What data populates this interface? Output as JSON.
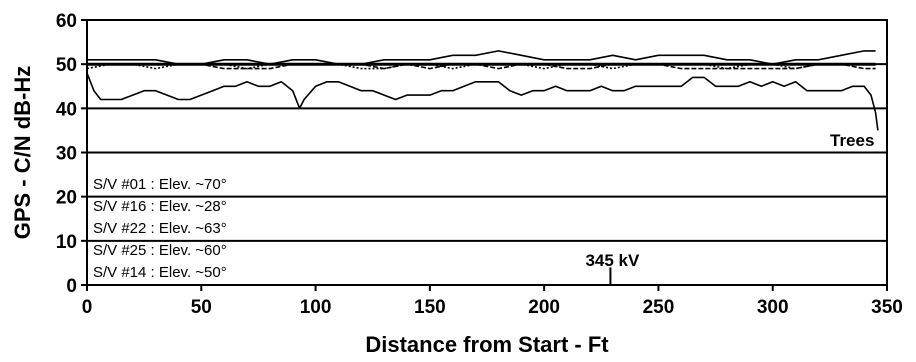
{
  "chart_data": {
    "type": "line",
    "xlabel": "Distance from Start - Ft",
    "ylabel": "GPS - C/N dB-Hz",
    "xlim": [
      0,
      350
    ],
    "ylim": [
      0,
      60
    ],
    "xticks": [
      0,
      50,
      100,
      150,
      200,
      250,
      300,
      350
    ],
    "yticks": [
      0,
      10,
      20,
      30,
      40,
      50,
      60
    ],
    "grid": "horizontal",
    "legend_placement": "bottom-left",
    "series": [
      {
        "name": "S/V #01 : Elev. ~70°",
        "x": [
          0,
          10,
          20,
          30,
          40,
          50,
          60,
          70,
          80,
          90,
          100,
          110,
          120,
          130,
          140,
          150,
          160,
          170,
          180,
          190,
          200,
          210,
          220,
          230,
          240,
          250,
          260,
          270,
          280,
          290,
          300,
          310,
          320,
          330,
          340,
          345
        ],
        "y": [
          51,
          51,
          51,
          51,
          50,
          50,
          51,
          51,
          50,
          51,
          51,
          50,
          50,
          51,
          51,
          51,
          52,
          52,
          53,
          52,
          51,
          51,
          51,
          52,
          51,
          52,
          52,
          52,
          51,
          51,
          50,
          51,
          51,
          52,
          53,
          53
        ]
      },
      {
        "name": "S/V #16 : Elev. ~28°",
        "x": [
          0,
          3,
          6,
          10,
          15,
          20,
          25,
          30,
          35,
          40,
          45,
          50,
          55,
          60,
          65,
          70,
          75,
          80,
          85,
          90,
          93,
          95,
          100,
          105,
          110,
          115,
          120,
          125,
          130,
          135,
          140,
          145,
          150,
          155,
          160,
          165,
          170,
          175,
          180,
          185,
          190,
          195,
          200,
          205,
          210,
          215,
          220,
          225,
          230,
          235,
          240,
          245,
          250,
          255,
          260,
          265,
          270,
          275,
          280,
          285,
          290,
          295,
          300,
          305,
          310,
          315,
          320,
          325,
          330,
          335,
          340,
          343,
          345,
          346
        ],
        "y": [
          48,
          44,
          42,
          42,
          42,
          43,
          44,
          44,
          43,
          42,
          42,
          43,
          44,
          45,
          45,
          46,
          45,
          45,
          46,
          44,
          40,
          42,
          45,
          46,
          46,
          45,
          44,
          44,
          43,
          42,
          43,
          43,
          43,
          44,
          44,
          45,
          46,
          46,
          46,
          44,
          43,
          44,
          44,
          45,
          44,
          44,
          44,
          45,
          44,
          44,
          45,
          45,
          45,
          45,
          45,
          47,
          47,
          45,
          45,
          45,
          46,
          45,
          46,
          45,
          46,
          44,
          44,
          44,
          44,
          45,
          45,
          43,
          39,
          35
        ]
      },
      {
        "name": "S/V #22 : Elev. ~63°",
        "x": [
          0,
          10,
          20,
          30,
          40,
          50,
          60,
          70,
          80,
          90,
          100,
          110,
          120,
          130,
          140,
          150,
          160,
          170,
          180,
          190,
          200,
          210,
          220,
          230,
          240,
          250,
          260,
          270,
          280,
          290,
          300,
          310,
          320,
          330,
          340,
          345
        ],
        "y": [
          50,
          50,
          50,
          50,
          50,
          50,
          49,
          49,
          49,
          50,
          50,
          50,
          50,
          49,
          50,
          49,
          50,
          50,
          49,
          50,
          50,
          49,
          49,
          50,
          50,
          50,
          49,
          49,
          49,
          49,
          49,
          49,
          50,
          50,
          49,
          49
        ]
      },
      {
        "name": "S/V #25 : Elev. ~60°",
        "x": [
          0,
          10,
          20,
          30,
          40,
          50,
          60,
          70,
          80,
          90,
          100,
          110,
          120,
          130,
          140,
          150,
          160,
          170,
          180,
          190,
          200,
          210,
          220,
          230,
          240,
          250,
          260,
          270,
          280,
          290,
          300,
          310,
          320,
          330,
          340,
          345
        ],
        "y": [
          49,
          50,
          50,
          49,
          50,
          50,
          50,
          49,
          50,
          50,
          50,
          50,
          49,
          49,
          50,
          50,
          49,
          50,
          50,
          50,
          49,
          50,
          50,
          49,
          50,
          50,
          50,
          50,
          49,
          50,
          50,
          49,
          50,
          50,
          50,
          50
        ]
      },
      {
        "name": "S/V #14 : Elev. ~50°",
        "x": [
          0,
          10,
          20,
          30,
          40,
          50,
          60,
          70,
          80,
          90,
          100,
          110,
          120,
          130,
          140,
          150,
          160,
          170,
          180,
          190,
          200,
          210,
          220,
          230,
          240,
          250,
          260,
          270,
          280,
          290,
          300,
          310,
          320,
          330,
          340,
          345
        ],
        "y": [
          50,
          50,
          50,
          50,
          50,
          50,
          50,
          50,
          50,
          50,
          50,
          50,
          50,
          50,
          50,
          50,
          50,
          50,
          50,
          50,
          50,
          50,
          50,
          50,
          50,
          50,
          50,
          50,
          50,
          50,
          50,
          50,
          50,
          50,
          50,
          50
        ]
      }
    ],
    "annotations": [
      {
        "text": "Trees",
        "x": 345,
        "y": 33
      },
      {
        "text": "345 kV",
        "x": 229,
        "y": 5
      }
    ]
  }
}
